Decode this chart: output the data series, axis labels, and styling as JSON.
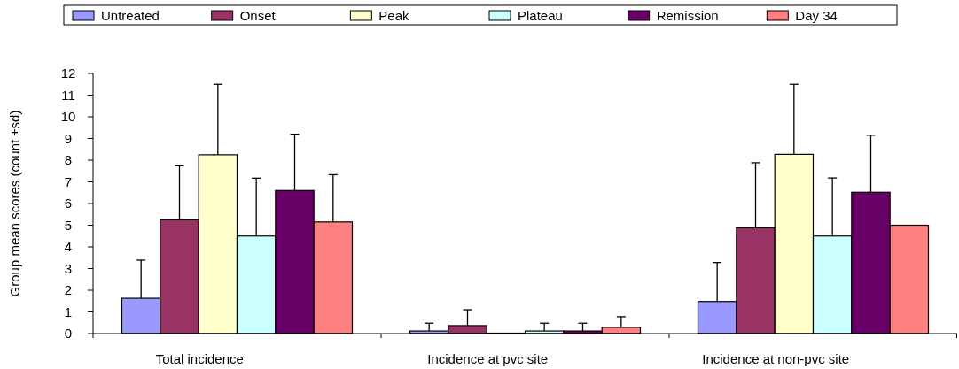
{
  "chart_data": {
    "type": "bar",
    "ylabel": "Group mean scores (count ±sd)",
    "categories": [
      "Total incidence",
      "Incidence at pvc site",
      "Incidence at non-pvc site"
    ],
    "ylim": [
      0,
      12
    ],
    "yticks": [
      0,
      1,
      2,
      3,
      4,
      5,
      6,
      7,
      8,
      9,
      10,
      11,
      12
    ],
    "legend": "top",
    "grid": false,
    "series": [
      {
        "name": "Untreated",
        "color": "#9999ff",
        "values": [
          1.63,
          0.12,
          1.48
        ],
        "errors": [
          [
            1.63,
            3.39
          ],
          [
            0.12,
            0.48
          ],
          [
            1.48,
            3.28
          ]
        ]
      },
      {
        "name": "Onset",
        "color": "#993366",
        "values": [
          5.25,
          0.37,
          4.88
        ],
        "errors": [
          [
            5.25,
            7.74
          ],
          [
            0.37,
            1.1
          ],
          [
            4.88,
            7.88
          ]
        ]
      },
      {
        "name": "Peak",
        "color": "#ffffcc",
        "values": [
          8.25,
          0,
          8.27
        ],
        "errors": [
          [
            8.25,
            11.5
          ],
          null,
          [
            8.27,
            11.5
          ]
        ]
      },
      {
        "name": "Plateau",
        "color": "#ccffff",
        "values": [
          4.5,
          0.12,
          4.5
        ],
        "errors": [
          [
            4.5,
            7.17
          ],
          [
            0.12,
            0.48
          ],
          [
            4.5,
            7.18
          ]
        ]
      },
      {
        "name": "Remission",
        "color": "#660066",
        "values": [
          6.6,
          0.12,
          6.52
        ],
        "errors": [
          [
            6.6,
            9.2
          ],
          [
            0.12,
            0.48
          ],
          [
            6.52,
            9.15
          ]
        ]
      },
      {
        "name": "Day 34",
        "color": "#ff8080",
        "values": [
          5.15,
          0.29,
          5.0
        ],
        "errors": [
          [
            5.15,
            7.33
          ],
          [
            0.29,
            0.78
          ],
          null
        ]
      }
    ]
  }
}
